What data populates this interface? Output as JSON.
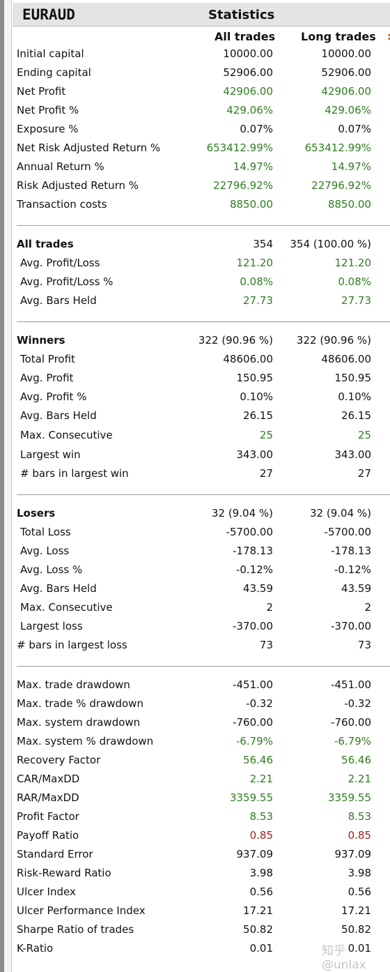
{
  "header": {
    "symbol": "EURAUD",
    "title": "Statistics"
  },
  "columns": {
    "all": "All trades",
    "long": "Long trades"
  },
  "watermark": "知乎 @unlax",
  "colors": {
    "positive": "#2e7d1f",
    "negative": "#a61d1d",
    "header_bg": "#e4e4e4"
  },
  "rows": [
    {
      "label": "Initial capital",
      "all": "10000.00",
      "long": "10000.00",
      "color": ""
    },
    {
      "label": "Ending capital",
      "all": "52906.00",
      "long": "52906.00",
      "color": ""
    },
    {
      "label": "Net Profit",
      "all": "42906.00",
      "long": "42906.00",
      "color": "green"
    },
    {
      "label": "Net Profit %",
      "all": "429.06%",
      "long": "429.06%",
      "color": "green"
    },
    {
      "label": "Exposure %",
      "all": "0.07%",
      "long": "0.07%",
      "color": ""
    },
    {
      "label": "Net Risk Adjusted Return %",
      "all": "653412.99%",
      "long": "653412.99%",
      "color": "green"
    },
    {
      "label": "Annual Return %",
      "all": "14.97%",
      "long": "14.97%",
      "color": "green"
    },
    {
      "label": "Risk Adjusted Return %",
      "all": "22796.92%",
      "long": "22796.92%",
      "color": "green"
    },
    {
      "label": "Transaction costs",
      "all": "8850.00",
      "long": "8850.00",
      "color": "green"
    },
    {
      "label": "All trades",
      "all": "354",
      "long": "354 (100.00 %)",
      "color": "",
      "bold": true
    },
    {
      "label": "Avg. Profit/Loss",
      "all": "121.20",
      "long": "121.20",
      "color": "green",
      "indent": true
    },
    {
      "label": "Avg. Profit/Loss %",
      "all": "0.08%",
      "long": "0.08%",
      "color": "green",
      "indent": true
    },
    {
      "label": "Avg. Bars Held",
      "all": "27.73",
      "long": "27.73",
      "color": "green",
      "indent": true
    },
    {
      "label": "Winners",
      "all": "322 (90.96 %)",
      "long": "322 (90.96 %)",
      "color": "",
      "bold": true
    },
    {
      "label": "Total Profit",
      "all": "48606.00",
      "long": "48606.00",
      "color": "",
      "indent": true
    },
    {
      "label": "Avg. Profit",
      "all": "150.95",
      "long": "150.95",
      "color": "",
      "indent": true
    },
    {
      "label": "Avg. Profit %",
      "all": "0.10%",
      "long": "0.10%",
      "color": "",
      "indent": true
    },
    {
      "label": "Avg. Bars Held",
      "all": "26.15",
      "long": "26.15",
      "color": "",
      "indent": true
    },
    {
      "label": "Max. Consecutive",
      "all": "25",
      "long": "25",
      "color": "green",
      "indent": true
    },
    {
      "label": "Largest win",
      "all": "343.00",
      "long": "343.00",
      "color": "",
      "indent": true
    },
    {
      "label": "# bars in largest win",
      "all": "27",
      "long": "27",
      "color": "",
      "indent": true
    },
    {
      "label": "Losers",
      "all": "32 (9.04 %)",
      "long": "32 (9.04 %)",
      "color": "",
      "bold": true
    },
    {
      "label": "Total Loss",
      "all": "-5700.00",
      "long": "-5700.00",
      "color": "",
      "indent": true
    },
    {
      "label": "Avg. Loss",
      "all": "-178.13",
      "long": "-178.13",
      "color": "",
      "indent": true
    },
    {
      "label": "Avg. Loss %",
      "all": "-0.12%",
      "long": "-0.12%",
      "color": "",
      "indent": true
    },
    {
      "label": "Avg. Bars Held",
      "all": "43.59",
      "long": "43.59",
      "color": "",
      "indent": true
    },
    {
      "label": "Max. Consecutive",
      "all": "2",
      "long": "2",
      "color": "",
      "indent": true
    },
    {
      "label": "Largest loss",
      "all": "-370.00",
      "long": "-370.00",
      "color": "",
      "indent": true
    },
    {
      "label": "# bars in largest loss",
      "all": "73",
      "long": "73",
      "color": ""
    },
    {
      "label": "Max. trade drawdown",
      "all": "-451.00",
      "long": "-451.00",
      "color": ""
    },
    {
      "label": "Max. trade % drawdown",
      "all": "-0.32",
      "long": "-0.32",
      "color": ""
    },
    {
      "label": "Max. system drawdown",
      "all": "-760.00",
      "long": "-760.00",
      "color": ""
    },
    {
      "label": "Max. system % drawdown",
      "all": "-6.79%",
      "long": "-6.79%",
      "color": "green"
    },
    {
      "label": "Recovery Factor",
      "all": "56.46",
      "long": "56.46",
      "color": "green"
    },
    {
      "label": "CAR/MaxDD",
      "all": "2.21",
      "long": "2.21",
      "color": "green"
    },
    {
      "label": "RAR/MaxDD",
      "all": "3359.55",
      "long": "3359.55",
      "color": "green"
    },
    {
      "label": "Profit Factor",
      "all": "8.53",
      "long": "8.53",
      "color": "green"
    },
    {
      "label": "Payoff Ratio",
      "all": "0.85",
      "long": "0.85",
      "color": "red"
    },
    {
      "label": "Standard Error",
      "all": "937.09",
      "long": "937.09",
      "color": ""
    },
    {
      "label": "Risk-Reward Ratio",
      "all": "3.98",
      "long": "3.98",
      "color": ""
    },
    {
      "label": "Ulcer Index",
      "all": "0.56",
      "long": "0.56",
      "color": ""
    },
    {
      "label": "Ulcer Performance Index",
      "all": "17.21",
      "long": "17.21",
      "color": ""
    },
    {
      "label": "Sharpe Ratio of trades",
      "all": "50.82",
      "long": "50.82",
      "color": ""
    },
    {
      "label": "K-Ratio",
      "all": "0.01",
      "long": "0.01",
      "color": ""
    }
  ]
}
